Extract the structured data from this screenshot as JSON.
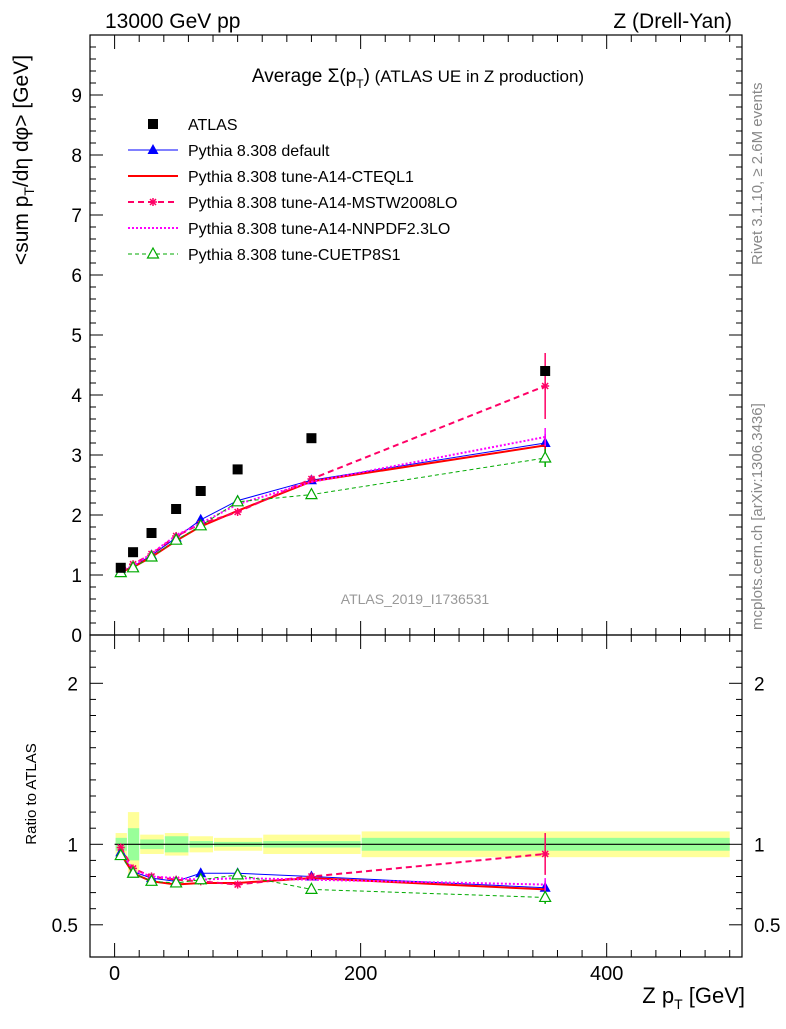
{
  "header": {
    "left": "13000 GeV pp",
    "right": "Z (Drell-Yan)"
  },
  "side_text": {
    "top": "Rivet 3.1.10, ≥ 2.6M events",
    "bottom": "mcplots.cern.ch [arXiv:1306.3436]"
  },
  "colors": {
    "atlas": "#000000",
    "default": "#0000ff",
    "cteql1": "#ff0000",
    "mstw": "#ff0066",
    "nnpdf": "#ff00ff",
    "cuetp": "#00aa00",
    "band_outer": "#ffff99",
    "band_inner": "#99ff99"
  },
  "chart_data": {
    "type": "line",
    "title_prefix": "Average ",
    "title_symbol": "Σ(p",
    "title_sub": "T",
    "title_close": ")",
    "title_suffix": " (ATLAS UE in Z production)",
    "watermark": "ATLAS_2019_I1736531",
    "xlabel": "Z p",
    "xlabel_sub": "T",
    "xlabel_unit": " [GeV]",
    "ylabel": "<sum p_T/dη dφ> [GeV]",
    "ylabel_main": "<sum p",
    "ylabel_sub": "T",
    "ylabel_rest": "/dη dφ> [GeV]",
    "ratio_ylabel": "Ratio to ATLAS",
    "xlim": [
      -20,
      510
    ],
    "ylim": [
      0,
      10
    ],
    "ratio_ylim": [
      0.3,
      2.3
    ],
    "x_ticks": [
      0,
      200,
      400
    ],
    "y_ticks": [
      0,
      1,
      2,
      3,
      4,
      5,
      6,
      7,
      8,
      9
    ],
    "ratio_ticks": [
      0.5,
      1,
      2
    ],
    "ratio_tick_labels": [
      "0.5",
      "1",
      "2"
    ],
    "x": [
      5,
      15,
      30,
      50,
      70,
      100,
      160,
      350
    ],
    "data": {
      "name": "ATLAS",
      "values": [
        1.12,
        1.38,
        1.7,
        2.1,
        2.4,
        2.76,
        3.28,
        4.4
      ],
      "band_edges": [
        0,
        10,
        20,
        40,
        60,
        80,
        120,
        200,
        500
      ],
      "band_outer": [
        0.07,
        0.2,
        0.06,
        0.07,
        0.05,
        0.04,
        0.06,
        0.08
      ],
      "band_inner": [
        0.04,
        0.1,
        0.03,
        0.05,
        0.02,
        0.015,
        0.02,
        0.04
      ]
    },
    "series": [
      {
        "name": "Pythia 8.308 default",
        "key": "default",
        "dash": "",
        "marker": "filled-triangle",
        "width": 1,
        "values": [
          1.06,
          1.14,
          1.33,
          1.62,
          1.92,
          2.24,
          2.58,
          3.2
        ],
        "ratio": [
          0.95,
          0.83,
          0.79,
          0.77,
          0.82,
          0.82,
          0.8,
          0.73
        ]
      },
      {
        "name": "Pythia 8.308 tune-A14-CTEQL1",
        "key": "cteql1",
        "dash": "",
        "marker": "none",
        "width": 2,
        "values": [
          1.05,
          1.13,
          1.3,
          1.57,
          1.81,
          2.07,
          2.56,
          3.16
        ],
        "ratio": [
          0.94,
          0.82,
          0.77,
          0.75,
          0.76,
          0.76,
          0.79,
          0.72
        ]
      },
      {
        "name": "Pythia 8.308 tune-A14-MSTW2008LO",
        "key": "mstw",
        "dash": "6,4",
        "marker": "star",
        "width": 2,
        "values": [
          1.08,
          1.18,
          1.35,
          1.65,
          1.85,
          2.05,
          2.6,
          4.15
        ],
        "ratio": [
          0.98,
          0.85,
          0.8,
          0.78,
          0.77,
          0.75,
          0.8,
          0.94
        ]
      },
      {
        "name": "Pythia 8.308 tune-A14-NNPDF2.3LO",
        "key": "nnpdf",
        "dash": "2,2",
        "marker": "none",
        "width": 2,
        "values": [
          1.07,
          1.15,
          1.36,
          1.66,
          1.86,
          2.18,
          2.55,
          3.3
        ],
        "ratio": [
          0.96,
          0.84,
          0.8,
          0.79,
          0.78,
          0.79,
          0.78,
          0.75
        ]
      },
      {
        "name": "Pythia 8.308 tune-CUETP8S1",
        "key": "cuetp",
        "dash": "4,3",
        "marker": "open-triangle",
        "width": 1,
        "values": [
          1.04,
          1.12,
          1.3,
          1.58,
          1.82,
          2.22,
          2.34,
          2.95
        ],
        "ratio": [
          0.93,
          0.82,
          0.77,
          0.76,
          0.78,
          0.81,
          0.72,
          0.67
        ]
      }
    ]
  }
}
